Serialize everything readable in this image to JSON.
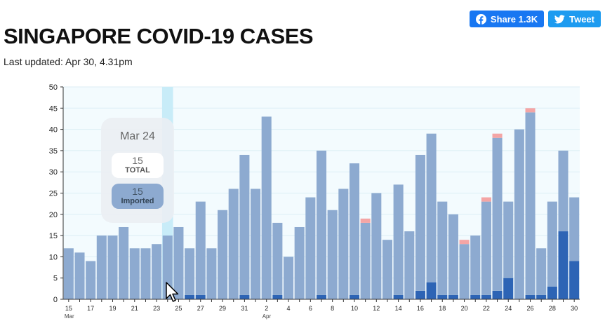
{
  "share": {
    "facebook_label": "Share 1.3K",
    "twitter_label": "Tweet"
  },
  "header": {
    "title": "SINGAPORE COVID-19 CASES",
    "updated": "Last updated: Apr 30, 4.31pm"
  },
  "tooltip": {
    "date": "Mar 24",
    "total_value": "15",
    "total_label": "TOTAL",
    "imported_value": "15",
    "imported_label": "Imported"
  },
  "colors": {
    "imported": "#8daad0",
    "local": "#2d64b5",
    "unlinked": "#f4a5a5",
    "plot_bg": "#f3fbfe",
    "highlight": "#c8ecf8",
    "grid": "#dceef5"
  },
  "chart_data": {
    "type": "bar",
    "stacked": true,
    "title": "",
    "xlabel": "",
    "ylabel": "",
    "ylim": [
      0,
      50
    ],
    "yticks": [
      0,
      5,
      10,
      15,
      20,
      25,
      30,
      35,
      40,
      45,
      50
    ],
    "categories": [
      "15",
      "16",
      "17",
      "18",
      "19",
      "20",
      "21",
      "22",
      "23",
      "24",
      "25",
      "26",
      "27",
      "28",
      "29",
      "30",
      "31",
      "1",
      "2",
      "3",
      "4",
      "5",
      "6",
      "7",
      "8",
      "9",
      "10",
      "11",
      "12",
      "13",
      "14",
      "15",
      "16",
      "17",
      "18",
      "19",
      "20",
      "21",
      "22",
      "23",
      "24",
      "25",
      "26",
      "27",
      "28",
      "29",
      "30"
    ],
    "tick_labels": [
      {
        "index": 0,
        "label": "15",
        "month": "Mar"
      },
      {
        "index": 2,
        "label": "17"
      },
      {
        "index": 4,
        "label": "19"
      },
      {
        "index": 6,
        "label": "21"
      },
      {
        "index": 8,
        "label": "23"
      },
      {
        "index": 10,
        "label": "25"
      },
      {
        "index": 12,
        "label": "27"
      },
      {
        "index": 14,
        "label": "29"
      },
      {
        "index": 16,
        "label": "31"
      },
      {
        "index": 18,
        "label": "2",
        "month": "Apr"
      },
      {
        "index": 20,
        "label": "4"
      },
      {
        "index": 22,
        "label": "6"
      },
      {
        "index": 24,
        "label": "8"
      },
      {
        "index": 26,
        "label": "10"
      },
      {
        "index": 28,
        "label": "12"
      },
      {
        "index": 30,
        "label": "14"
      },
      {
        "index": 32,
        "label": "16"
      },
      {
        "index": 34,
        "label": "18"
      },
      {
        "index": 36,
        "label": "20"
      },
      {
        "index": 38,
        "label": "22"
      },
      {
        "index": 40,
        "label": "24"
      },
      {
        "index": 42,
        "label": "26"
      },
      {
        "index": 44,
        "label": "28"
      },
      {
        "index": 46,
        "label": "30"
      }
    ],
    "highlight_index": 9,
    "series": [
      {
        "name": "Local",
        "color": "#2d64b5",
        "values": [
          0,
          0,
          0,
          0,
          0,
          0,
          0,
          0,
          0,
          0,
          0,
          1,
          1,
          0,
          0,
          0,
          1,
          0,
          0,
          1,
          0,
          0,
          0,
          1,
          0,
          0,
          1,
          0,
          0,
          0,
          1,
          0,
          2,
          4,
          1,
          1,
          0,
          1,
          1,
          2,
          5,
          0,
          1,
          1,
          3,
          16,
          9
        ]
      },
      {
        "name": "Imported",
        "color": "#8daad0",
        "values": [
          12,
          11,
          9,
          15,
          15,
          17,
          12,
          12,
          13,
          15,
          17,
          11,
          22,
          12,
          21,
          26,
          33,
          26,
          43,
          17,
          10,
          17,
          24,
          34,
          21,
          26,
          31,
          18,
          25,
          14,
          26,
          16,
          32,
          35,
          22,
          19,
          13,
          14,
          22,
          36,
          18,
          40,
          43,
          11,
          20,
          19,
          15
        ]
      },
      {
        "name": "Unlinked",
        "color": "#f4a5a5",
        "values": [
          0,
          0,
          0,
          0,
          0,
          0,
          0,
          0,
          0,
          0,
          0,
          0,
          0,
          0,
          0,
          0,
          0,
          0,
          0,
          0,
          0,
          0,
          0,
          0,
          0,
          0,
          0,
          1,
          0,
          0,
          0,
          0,
          0,
          0,
          0,
          0,
          1,
          0,
          1,
          1,
          0,
          0,
          1,
          0,
          0,
          0,
          0
        ]
      }
    ]
  }
}
